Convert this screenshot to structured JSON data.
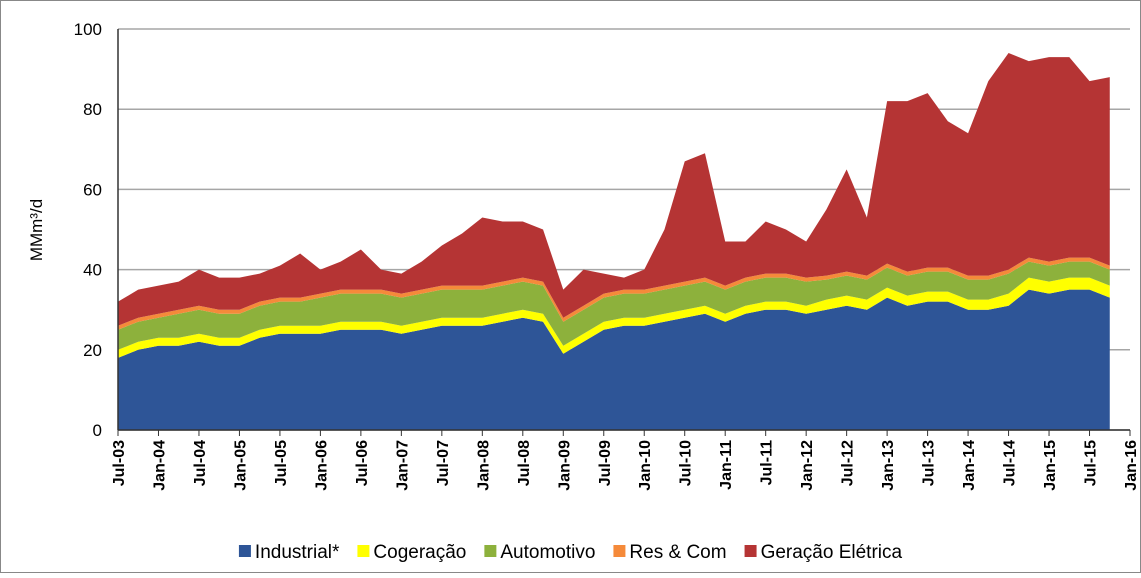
{
  "chart_data": {
    "type": "stacked_area",
    "y_label": "MMm³/d",
    "categories": [
      "Jul-03",
      null,
      "Jan-04",
      null,
      "Jul-04",
      null,
      "Jan-05",
      null,
      "Jul-05",
      null,
      "Jan-06",
      null,
      "Jul-06",
      null,
      "Jan-07",
      null,
      "Jul-07",
      null,
      "Jan-08",
      null,
      "Jul-08",
      null,
      "Jan-09",
      null,
      "Jul-09",
      null,
      "Jan-10",
      null,
      "Jul-10",
      null,
      "Jan-11",
      null,
      "Jul-11",
      null,
      "Jan-12",
      null,
      "Jul-12",
      null,
      "Jan-13",
      null,
      "Jul-13",
      null,
      "Jan-14",
      null,
      "Jul-14",
      null,
      "Jan-15",
      null,
      "Jul-15",
      null,
      "Jan-16"
    ],
    "series": [
      {
        "name": "Industrial*",
        "color": "#2e5597",
        "values": [
          18,
          20,
          21,
          21,
          22,
          21,
          21,
          23,
          24,
          24,
          24,
          25,
          25,
          25,
          24,
          25,
          26,
          26,
          26,
          27,
          28,
          27,
          19,
          22,
          25,
          26,
          26,
          27,
          28,
          29,
          27,
          29,
          30,
          30,
          29,
          30,
          31,
          30,
          33,
          31,
          32,
          32,
          30,
          30,
          31,
          35,
          34,
          35,
          35,
          33,
          null
        ]
      },
      {
        "name": "Cogeração",
        "color": "#ffff00",
        "values": [
          2,
          2,
          2,
          2,
          2,
          2,
          2,
          2,
          2,
          2,
          2,
          2,
          2,
          2,
          2,
          2,
          2,
          2,
          2,
          2,
          2,
          2,
          2,
          2,
          2,
          2,
          2,
          2,
          2,
          2,
          2,
          2,
          2,
          2,
          2,
          2.5,
          2.5,
          2.5,
          2.5,
          2.5,
          2.5,
          2.5,
          2.5,
          2.5,
          3,
          3,
          3,
          3,
          3,
          3,
          null
        ]
      },
      {
        "name": "Automotivo",
        "color": "#8db13c",
        "values": [
          5,
          5,
          5,
          6,
          6,
          6,
          6,
          6,
          6,
          6,
          7,
          7,
          7,
          7,
          7,
          7,
          7,
          7,
          7,
          7,
          7,
          7,
          6,
          6,
          6,
          6,
          6,
          6,
          6,
          6,
          6,
          6,
          6,
          6,
          6,
          5,
          5,
          5,
          5,
          5,
          5,
          5,
          5,
          5,
          5,
          4,
          4,
          4,
          4,
          4,
          null
        ]
      },
      {
        "name": "Res & Com",
        "color": "#f58a3a",
        "values": [
          1,
          1,
          1,
          1,
          1,
          1,
          1,
          1,
          1,
          1,
          1,
          1,
          1,
          1,
          1,
          1,
          1,
          1,
          1,
          1,
          1,
          1,
          1,
          1,
          1,
          1,
          1,
          1,
          1,
          1,
          1,
          1,
          1,
          1,
          1,
          1,
          1,
          1,
          1,
          1,
          1,
          1,
          1,
          1,
          1,
          1,
          1,
          1,
          1,
          1,
          null
        ]
      },
      {
        "name": "Geração Elétrica",
        "color": "#b53434",
        "values": [
          6,
          7,
          7,
          7,
          9,
          8,
          8,
          7,
          8,
          11,
          6,
          7,
          10,
          5,
          5,
          7,
          10,
          13,
          17,
          15,
          14,
          13,
          7,
          9,
          5,
          3,
          5,
          14,
          30,
          31,
          11,
          9,
          13,
          11,
          9,
          16.5,
          25.5,
          14.5,
          40.5,
          42.5,
          43.5,
          36.5,
          35.5,
          48.5,
          54,
          49,
          51,
          50,
          44,
          47,
          null
        ]
      }
    ],
    "ylim": [
      0,
      100
    ],
    "yticks": [
      0,
      20,
      40,
      60,
      80,
      100
    ],
    "grid": true,
    "legend": "bottom"
  }
}
